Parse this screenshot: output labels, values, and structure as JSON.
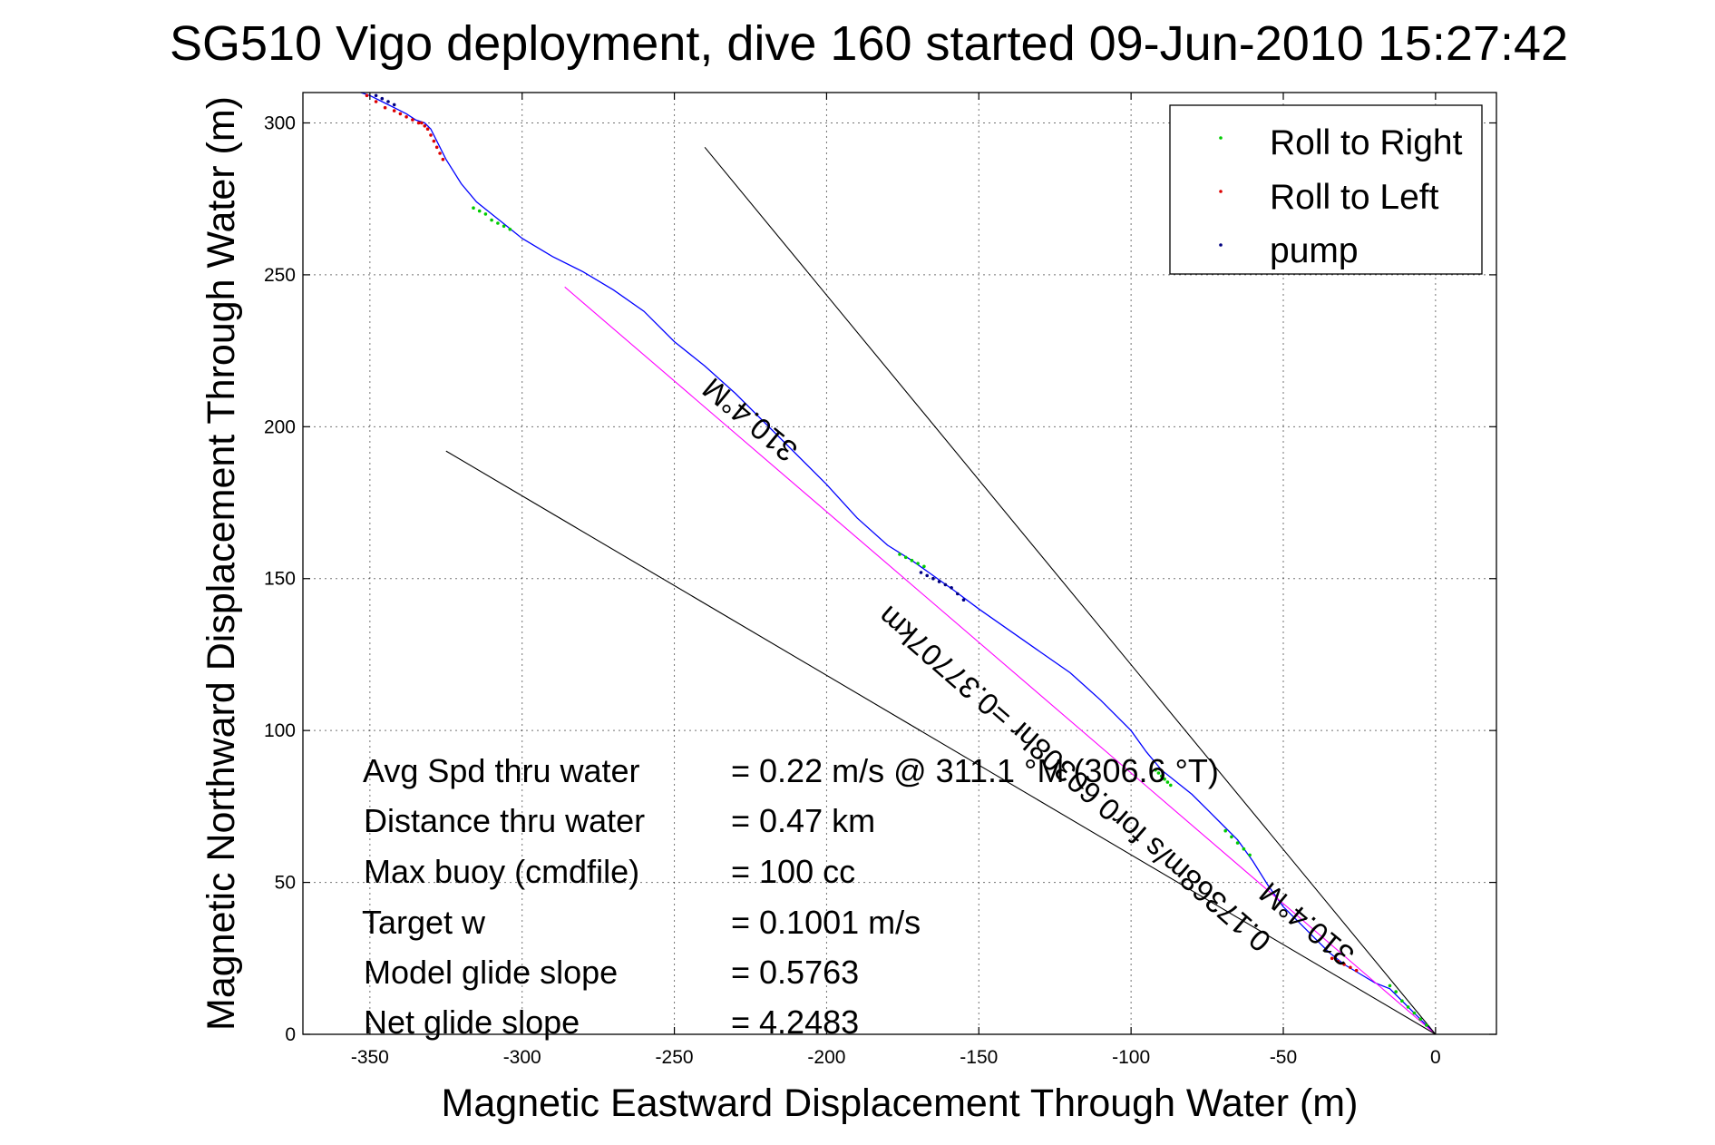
{
  "chart_data": {
    "type": "line",
    "title": "SG510 Vigo deployment, dive 160 started 09-Jun-2010 15:27:42",
    "xlabel": "Magnetic Eastward Displacement Through Water (m)",
    "ylabel": "Magnetic Northward Displacement Through Water (m)",
    "xlim": [
      -372,
      20
    ],
    "ylim": [
      0,
      310
    ],
    "x_ticks": [
      -350,
      -300,
      -250,
      -200,
      -150,
      -100,
      -50,
      0
    ],
    "y_ticks": [
      0,
      50,
      100,
      150,
      200,
      250,
      300
    ],
    "x_tick_labels": [
      "-350",
      "-300",
      "-250",
      "-200",
      "-150",
      "-100",
      "-50",
      "0"
    ],
    "y_tick_labels": [
      "0",
      "50",
      "100",
      "150",
      "200",
      "250",
      "300"
    ],
    "grid": true,
    "legend_position": "top-right",
    "legend": [
      {
        "label": "Roll to Right",
        "color": "#00cc00"
      },
      {
        "label": "Roll to Left",
        "color": "#dd0000"
      },
      {
        "label": "pump",
        "color": "#000080"
      }
    ],
    "series": [
      {
        "color": "#0000ff",
        "x": [
          0,
          -5,
          -10,
          -15,
          -20,
          -25,
          -30,
          -35,
          -40,
          -45,
          -50,
          -55,
          -60,
          -65,
          -70,
          -75,
          -80,
          -85,
          -90,
          -95,
          -100,
          -110,
          -120,
          -130,
          -140,
          -150,
          -158,
          -165,
          -172,
          -180,
          -190,
          -200,
          -210,
          -220,
          -230,
          -240,
          -250,
          -260,
          -270,
          -280,
          -290,
          -300,
          -305,
          -310,
          -315,
          -320,
          -325,
          -328,
          -330,
          -332,
          -335,
          -338,
          -342,
          -346,
          -350,
          -353
        ],
        "y": [
          0,
          5,
          10,
          15,
          17,
          20,
          23,
          27,
          32,
          37,
          42,
          49,
          57,
          64,
          69,
          74,
          79,
          83,
          87,
          93,
          100,
          110,
          119,
          126,
          133,
          140,
          146,
          151,
          156,
          161,
          170,
          181,
          191,
          201,
          211,
          220,
          228,
          238,
          245,
          251,
          256,
          262,
          266,
          270,
          274,
          280,
          288,
          294,
          298,
          300,
          301,
          303,
          305,
          307,
          309,
          310
        ]
      },
      {
        "color": "#ff00ff",
        "x": [
          0,
          -286
        ],
        "y": [
          0,
          246
        ]
      },
      {
        "color": "#000000",
        "x": [
          0,
          -240
        ],
        "y": [
          0,
          292
        ]
      },
      {
        "color": "#000000",
        "x": [
          0,
          -325
        ],
        "y": [
          0,
          192
        ]
      }
    ],
    "roll_right_points": {
      "x": [
        -3,
        -5,
        -7,
        -9,
        -11,
        -13,
        -15,
        -61,
        -63,
        -65,
        -67,
        -69,
        -87,
        -88,
        -89,
        -90,
        -91,
        -92,
        -168,
        -170,
        -172,
        -174,
        -176,
        -304,
        -306,
        -308,
        -310,
        -312,
        -314,
        -316
      ],
      "y": [
        3,
        5,
        7,
        9,
        11,
        14,
        16,
        59,
        61,
        63,
        65,
        67,
        82,
        83,
        84,
        85,
        86,
        87,
        154,
        155,
        156,
        157,
        158,
        265,
        266,
        267,
        268,
        270,
        271,
        272
      ]
    },
    "roll_left_points": {
      "x": [
        -26,
        -28,
        -30,
        -32,
        -34,
        -326,
        -327,
        -328,
        -329,
        -330,
        -331,
        -332,
        -333,
        -334,
        -336,
        -338,
        -340,
        -342,
        -345,
        -348,
        -351
      ],
      "y": [
        21,
        22,
        23,
        24,
        25,
        288,
        290,
        292,
        294,
        296,
        298,
        299,
        300,
        300,
        301,
        302,
        303,
        304,
        305,
        307,
        309
      ]
    },
    "pump_points": {
      "x": [
        -155,
        -157,
        -159,
        -161,
        -163,
        -165,
        -167,
        -169,
        -342,
        -344,
        -346,
        -348
      ],
      "y": [
        143,
        145,
        147,
        148,
        149,
        150,
        151,
        152,
        306,
        307,
        308,
        309
      ]
    },
    "annotations": {
      "heading_top": "310.4°M",
      "track": "0.17368m/s for0.60308hr =0.37707km",
      "heading_bottom": "310.4°M"
    },
    "summary": [
      {
        "label": "Avg Spd thru water",
        "value": "=  0.22 m/s @ 311.1  °M (306.6 °T)"
      },
      {
        "label": "Distance thru water",
        "value": "=  0.47 km"
      },
      {
        "label": "Max buoy (cmdfile)",
        "value": "= 100 cc"
      },
      {
        "label": "Target w",
        "value": "= 0.1001 m/s"
      },
      {
        "label": "Model glide slope",
        "value": "= 0.5763"
      },
      {
        "label": "Net glide slope",
        "value": "= 4.2483"
      }
    ]
  }
}
